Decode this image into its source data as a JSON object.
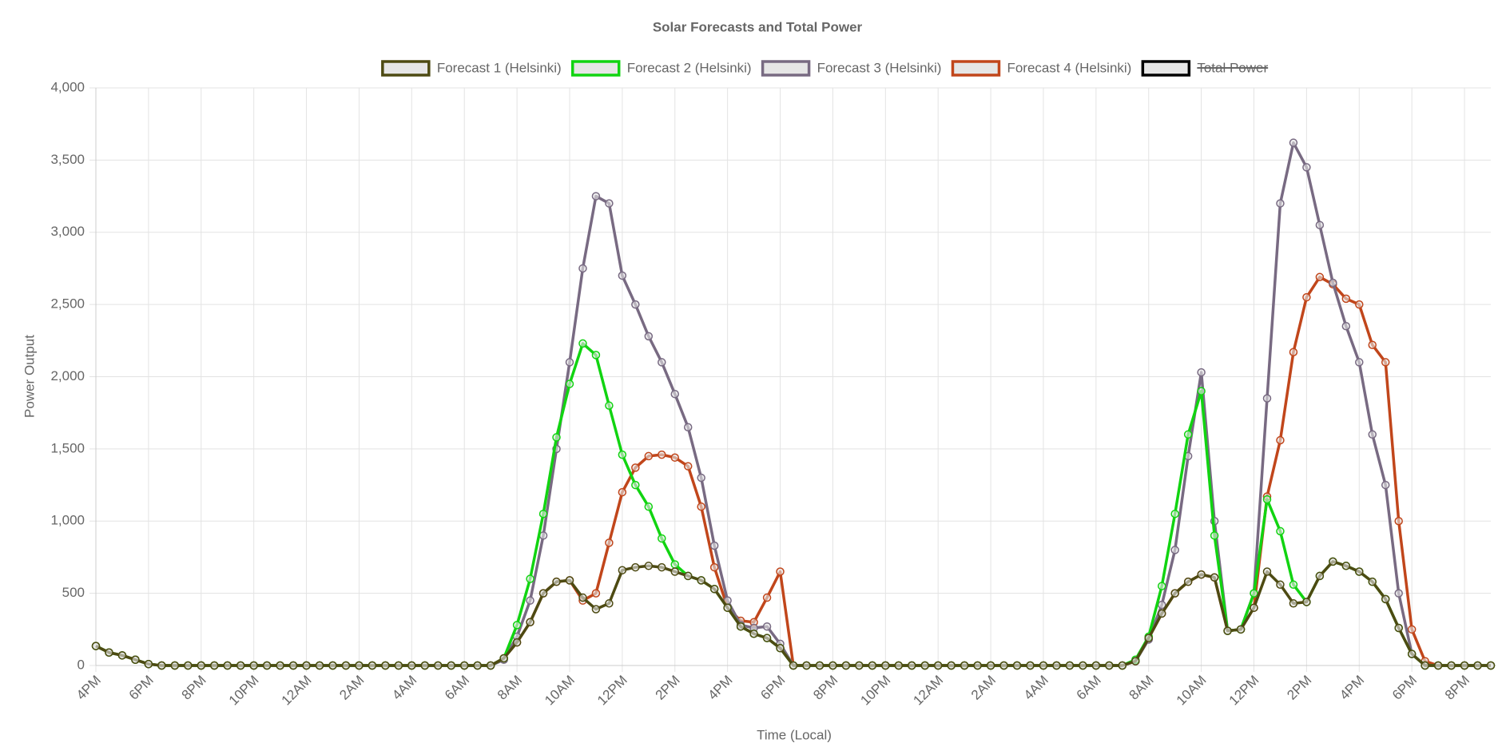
{
  "chart_data": {
    "type": "line",
    "title": "Solar Forecasts and Total Power",
    "x_label": "Time (Local)",
    "y_label": "Power Output",
    "categories": [
      "4PM",
      null,
      null,
      null,
      "6PM",
      null,
      null,
      null,
      "8PM",
      null,
      null,
      null,
      "10PM",
      null,
      null,
      null,
      "12AM",
      null,
      null,
      null,
      "2AM",
      null,
      null,
      null,
      "4AM",
      null,
      null,
      null,
      "6AM",
      null,
      null,
      null,
      "8AM",
      null,
      null,
      null,
      "10AM",
      null,
      null,
      null,
      "12PM",
      null,
      null,
      null,
      "2PM",
      null,
      null,
      null,
      "4PM",
      null,
      null,
      null,
      "6PM",
      null,
      null,
      null,
      "8PM",
      null,
      null,
      null,
      "10PM",
      null,
      null,
      null,
      "12AM",
      null,
      null,
      null,
      "2AM",
      null,
      null,
      null,
      "4AM",
      null,
      null,
      null,
      "6AM",
      null,
      null,
      null,
      "8AM",
      null,
      null,
      null,
      "10AM",
      null,
      null,
      null,
      "12PM",
      null,
      null,
      null,
      "2PM",
      null,
      null,
      null,
      "4PM",
      null,
      null,
      null,
      "6PM",
      null,
      null,
      null,
      "8PM",
      null,
      null
    ],
    "series": [
      {
        "name": "Forecast 1 (Helsinki)",
        "color": "#4d4a12",
        "values": [
          135,
          90,
          70,
          40,
          10,
          0,
          0,
          0,
          0,
          0,
          0,
          0,
          0,
          0,
          0,
          0,
          0,
          0,
          0,
          0,
          0,
          0,
          0,
          0,
          0,
          0,
          0,
          0,
          0,
          0,
          0,
          50,
          160,
          300,
          500,
          580,
          590,
          470,
          390,
          430,
          660,
          680,
          690,
          680,
          650,
          620,
          590,
          530,
          400,
          270,
          220,
          190,
          120,
          0,
          0,
          0,
          0,
          0,
          0,
          0,
          0,
          0,
          0,
          0,
          0,
          0,
          0,
          0,
          0,
          0,
          0,
          0,
          0,
          0,
          0,
          0,
          0,
          0,
          0,
          30,
          190,
          360,
          500,
          580,
          630,
          610,
          240,
          250,
          400,
          650,
          560,
          430,
          440,
          620,
          720,
          690,
          650,
          580,
          460,
          260,
          80,
          0,
          0,
          0,
          0,
          0,
          0
        ]
      },
      {
        "name": "Forecast 2 (Helsinki)",
        "color": "#11d411",
        "values": [
          135,
          90,
          70,
          40,
          10,
          0,
          0,
          0,
          0,
          0,
          0,
          0,
          0,
          0,
          0,
          0,
          0,
          0,
          0,
          0,
          0,
          0,
          0,
          0,
          0,
          0,
          0,
          0,
          0,
          0,
          0,
          50,
          280,
          600,
          1050,
          1580,
          1950,
          2230,
          2150,
          1800,
          1460,
          1250,
          1100,
          880,
          700,
          620,
          590,
          530,
          400,
          270,
          220,
          190,
          120,
          0,
          0,
          0,
          0,
          0,
          0,
          0,
          0,
          0,
          0,
          0,
          0,
          0,
          0,
          0,
          0,
          0,
          0,
          0,
          0,
          0,
          0,
          0,
          0,
          0,
          0,
          40,
          200,
          550,
          1050,
          1600,
          1900,
          900,
          240,
          250,
          500,
          1150,
          930,
          560,
          440,
          620,
          720,
          690,
          650,
          580,
          460,
          260,
          80,
          0,
          0,
          0,
          0,
          0,
          0
        ]
      },
      {
        "name": "Forecast 3 (Helsinki)",
        "color": "#786a82",
        "values": [
          135,
          90,
          70,
          40,
          10,
          0,
          0,
          0,
          0,
          0,
          0,
          0,
          0,
          0,
          0,
          0,
          0,
          0,
          0,
          0,
          0,
          0,
          0,
          0,
          0,
          0,
          0,
          0,
          0,
          0,
          0,
          40,
          200,
          450,
          900,
          1500,
          2100,
          2750,
          3250,
          3200,
          2700,
          2500,
          2280,
          2100,
          1880,
          1650,
          1300,
          830,
          450,
          280,
          260,
          270,
          150,
          0,
          0,
          0,
          0,
          0,
          0,
          0,
          0,
          0,
          0,
          0,
          0,
          0,
          0,
          0,
          0,
          0,
          0,
          0,
          0,
          0,
          0,
          0,
          0,
          0,
          0,
          30,
          180,
          420,
          800,
          1450,
          2030,
          1000,
          240,
          250,
          500,
          1850,
          3200,
          3620,
          3450,
          3050,
          2650,
          2350,
          2100,
          1600,
          1250,
          500,
          80,
          0,
          0,
          0,
          0,
          0,
          0
        ]
      },
      {
        "name": "Forecast 4 (Helsinki)",
        "color": "#c1461b",
        "values": [
          135,
          90,
          70,
          40,
          10,
          0,
          0,
          0,
          0,
          0,
          0,
          0,
          0,
          0,
          0,
          0,
          0,
          0,
          0,
          0,
          0,
          0,
          0,
          0,
          0,
          0,
          0,
          0,
          0,
          0,
          0,
          50,
          160,
          300,
          500,
          580,
          590,
          450,
          500,
          850,
          1200,
          1370,
          1450,
          1460,
          1440,
          1380,
          1100,
          680,
          400,
          310,
          300,
          470,
          650,
          0,
          0,
          0,
          0,
          0,
          0,
          0,
          0,
          0,
          0,
          0,
          0,
          0,
          0,
          0,
          0,
          0,
          0,
          0,
          0,
          0,
          0,
          0,
          0,
          0,
          0,
          30,
          190,
          360,
          500,
          580,
          630,
          610,
          240,
          250,
          400,
          1170,
          1560,
          2170,
          2550,
          2690,
          2640,
          2540,
          2500,
          2220,
          2100,
          1000,
          250,
          30,
          0,
          0,
          0,
          0,
          0
        ]
      },
      {
        "name": "Total Power",
        "color": "#000000",
        "hidden": true
      }
    ],
    "ylim": [
      0,
      4000
    ],
    "yticks": [
      0,
      500,
      {
        "value": 1000,
        "label": "1,000"
      },
      {
        "value": 1500,
        "label": "1,500"
      },
      {
        "value": 2000,
        "label": "2,000"
      },
      {
        "value": 2500,
        "label": "2,500"
      },
      {
        "value": 3000,
        "label": "3,000"
      },
      {
        "value": 3500,
        "label": "3,500"
      },
      {
        "value": 4000,
        "label": "4,000"
      }
    ],
    "grid": true
  }
}
